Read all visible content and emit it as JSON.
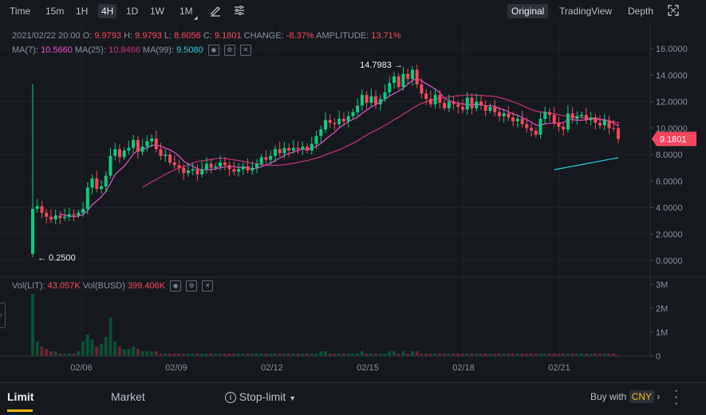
{
  "toolbar": {
    "intervals": [
      "Time",
      "15m",
      "1H",
      "4H",
      "1D",
      "1W",
      "1M"
    ],
    "active_interval": "4H",
    "views": [
      "Original",
      "TradingView",
      "Depth"
    ],
    "active_view": "Original"
  },
  "ohlc": {
    "date": "2021/02/22 20:00",
    "o_label": "O:",
    "o": "9.9793",
    "h_label": "H:",
    "h": "9.9793",
    "l_label": "L:",
    "l": "8.6056",
    "c_label": "C:",
    "c": "9.1801",
    "change_label": "CHANGE:",
    "change": "-8.37%",
    "amplitude_label": "AMPLITUDE:",
    "amplitude": "13.71%"
  },
  "ma": {
    "ma7_label": "MA(7):",
    "ma7": "10.5660",
    "ma25_label": "MA(25):",
    "ma25": "10.8466",
    "ma99_label": "MA(99):",
    "ma99": "9.5080"
  },
  "volume": {
    "vol_lit_label": "Vol(LIT):",
    "vol_lit": "43.057K",
    "vol_busd_label": "Vol(BUSD)",
    "vol_busd": "399.406K"
  },
  "chart_data": {
    "type": "candlestick",
    "price_axis": {
      "ticks": [
        "16.0000",
        "14.0000",
        "12.0000",
        "10.0000",
        "8.0000",
        "6.0000",
        "4.0000",
        "2.0000",
        "0.0000"
      ],
      "min": 0,
      "max": 16
    },
    "volume_axis": {
      "ticks": [
        "3M",
        "2M",
        "1M",
        "0"
      ]
    },
    "x_ticks": [
      "02/06",
      "02/09",
      "02/12",
      "02/15",
      "02/18",
      "02/21"
    ],
    "last_price": "9.1801",
    "max_marker": "14.7983",
    "min_marker": "0.2500",
    "closes": [
      3.9,
      4.1,
      3.6,
      3.3,
      3.1,
      3.4,
      3.2,
      3.3,
      3.5,
      3.4,
      3.6,
      3.9,
      5.5,
      6.2,
      5.4,
      5.6,
      6.4,
      7.9,
      8.4,
      7.8,
      8.3,
      8.5,
      9.1,
      8.2,
      8.6,
      9.0,
      9.2,
      8.4,
      7.9,
      8.0,
      7.4,
      7.2,
      7.0,
      6.6,
      6.8,
      6.9,
      6.5,
      6.9,
      7.3,
      7.0,
      7.1,
      7.4,
      7.2,
      6.9,
      6.7,
      6.9,
      7.1,
      6.8,
      7.0,
      7.3,
      7.8,
      7.6,
      7.9,
      8.4,
      8.1,
      8.5,
      8.3,
      8.5,
      8.4,
      8.6,
      8.3,
      8.8,
      9.4,
      9.9,
      10.6,
      10.4,
      10.3,
      10.7,
      10.5,
      10.9,
      11.2,
      11.7,
      12.5,
      11.9,
      12.4,
      11.8,
      12.2,
      12.7,
      13.4,
      13.9,
      13.1,
      14.1,
      13.7,
      14.4,
      13.3,
      12.6,
      12.2,
      11.8,
      12.5,
      11.9,
      11.5,
      12.0,
      11.8,
      11.6,
      11.4,
      12.3,
      11.5,
      12.0,
      11.7,
      11.3,
      11.6,
      11.2,
      10.9,
      11.1,
      10.8,
      10.5,
      10.7,
      10.3,
      10.0,
      9.8,
      9.5,
      10.7,
      11.2,
      11.0,
      10.4,
      10.1,
      9.9,
      11.1,
      10.7,
      10.9,
      11.0,
      10.6,
      10.8,
      10.4,
      10.2,
      10.6,
      10.0,
      9.98,
      9.18
    ],
    "volumes": [
      2.6,
      0.6,
      0.4,
      0.3,
      0.2,
      0.2,
      0.1,
      0.1,
      0.1,
      0.1,
      0.2,
      0.6,
      0.9,
      0.7,
      0.4,
      0.5,
      0.8,
      1.6,
      0.6,
      0.4,
      0.3,
      0.3,
      0.4,
      0.3,
      0.2,
      0.2,
      0.2,
      0.2,
      0.1,
      0.1,
      0.1,
      0.1,
      0.1,
      0.1,
      0.1,
      0.1,
      0.1,
      0.1,
      0.1,
      0.1,
      0.1,
      0.1,
      0.1,
      0.1,
      0.1,
      0.1,
      0.1,
      0.1,
      0.1,
      0.1,
      0.1,
      0.1,
      0.1,
      0.1,
      0.1,
      0.1,
      0.1,
      0.1,
      0.1,
      0.1,
      0.1,
      0.1,
      0.1,
      0.2,
      0.2,
      0.1,
      0.1,
      0.1,
      0.1,
      0.1,
      0.1,
      0.1,
      0.2,
      0.1,
      0.1,
      0.1,
      0.1,
      0.1,
      0.2,
      0.2,
      0.1,
      0.2,
      0.1,
      0.2,
      0.2,
      0.1,
      0.1,
      0.1,
      0.1,
      0.1,
      0.1,
      0.1,
      0.1,
      0.1,
      0.1,
      0.1,
      0.1,
      0.1,
      0.1,
      0.1,
      0.1,
      0.1,
      0.1,
      0.1,
      0.1,
      0.1,
      0.1,
      0.1,
      0.1,
      0.1,
      0.1,
      0.1,
      0.1,
      0.1,
      0.1,
      0.1,
      0.1,
      0.1,
      0.1,
      0.1,
      0.1,
      0.1,
      0.1,
      0.1,
      0.1,
      0.1,
      0.1,
      0.1,
      0.04
    ]
  },
  "order_tabs": {
    "limit": "Limit",
    "market": "Market",
    "stop_limit": "Stop-limit",
    "buy_with": "Buy with",
    "currency": "CNY"
  },
  "colors": {
    "up": "#0ecb81",
    "down": "#f6465d",
    "ma7": "#e64cc8",
    "ma25": "#c03279",
    "ma99": "#31c2d6",
    "accent": "#f0b90b"
  }
}
